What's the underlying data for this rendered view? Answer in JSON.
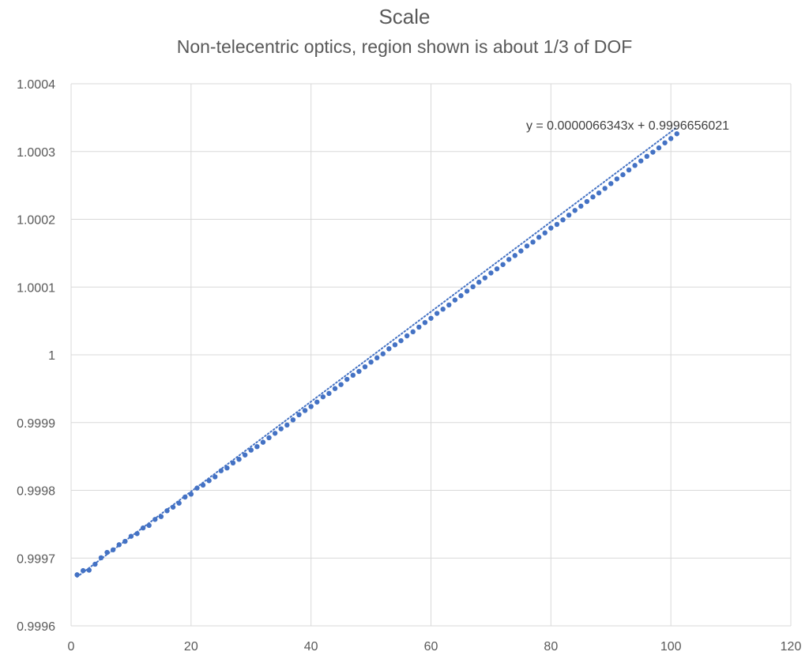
{
  "chart_data": {
    "type": "scatter",
    "title": "Scale",
    "subtitle": "Non-telecentric optics, region shown is about 1/3 of DOF",
    "xlabel": "",
    "ylabel": "",
    "xlim": [
      0,
      120
    ],
    "ylim": [
      0.9996,
      1.0004
    ],
    "x_ticks": [
      0,
      20,
      40,
      60,
      80,
      100,
      120
    ],
    "x_tick_labels": [
      "0",
      "20",
      "40",
      "60",
      "80",
      "100",
      "120"
    ],
    "y_ticks": [
      0.9996,
      0.9997,
      0.9998,
      0.9999,
      1,
      1.0001,
      1.0002,
      1.0003,
      1.0004
    ],
    "y_tick_labels": [
      "0.9996",
      "0.9997",
      "0.9998",
      "0.9999",
      "1",
      "1.0001",
      "1.0002",
      "1.0003",
      "1.0004"
    ],
    "grid": true,
    "legend": "none",
    "series": [
      {
        "color": "#4472C4",
        "x_start": 1,
        "x_end": 101,
        "x_step": 1,
        "values": [
          0.9996754,
          0.9996815,
          0.9996822,
          0.999691,
          0.9997005,
          0.9997084,
          0.9997122,
          0.9997197,
          0.9997247,
          0.9997322,
          0.9997361,
          0.9997445,
          0.9997482,
          0.9997571,
          0.9997613,
          0.9997699,
          0.9997752,
          0.9997811,
          0.9997901,
          0.9997944,
          0.9998034,
          0.9998077,
          0.9998143,
          0.9998199,
          0.9998289,
          0.999833,
          0.9998404,
          0.9998458,
          0.9998522,
          0.9998594,
          0.9998645,
          0.999871,
          0.9998776,
          0.9998842,
          0.9998908,
          0.9998964,
          0.999904,
          0.9999116,
          0.9999178,
          0.9999237,
          0.9999303,
          0.999938,
          0.999943,
          0.9999502,
          0.9999561,
          0.9999638,
          0.9999699,
          0.9999755,
          0.9999823,
          0.9999893,
          0.9999955,
          1.0000015,
          1.0000089,
          1.0000148,
          1.0000208,
          1.000028,
          1.000034,
          1.0000409,
          1.0000476,
          1.0000539,
          1.0000612,
          1.0000674,
          1.0000736,
          1.0000809,
          1.0000872,
          1.000094,
          1.0001005,
          1.0001072,
          1.0001135,
          1.0001208,
          1.0001269,
          1.0001332,
          1.0001408,
          1.0001465,
          1.0001532,
          1.0001606,
          1.0001664,
          1.0001735,
          1.0001799,
          1.0001871,
          1.0001925,
          1.0001992,
          1.0002062,
          1.0002131,
          1.0002194,
          1.0002262,
          1.000233,
          1.0002389,
          1.0002456,
          1.0002527,
          1.0002596,
          1.0002658,
          1.0002728,
          1.0002795,
          1.0002861,
          1.0002929,
          1.0002991,
          1.0003054,
          1.0003128,
          1.0003191,
          1.0003262
        ]
      }
    ],
    "trendline": {
      "type": "linear",
      "slope": 6.6343e-06,
      "intercept": 0.9996656021,
      "color": "#4472C4",
      "style": "dotted",
      "equation_label": "y = 0.0000066343x + 0.9996656021"
    }
  }
}
